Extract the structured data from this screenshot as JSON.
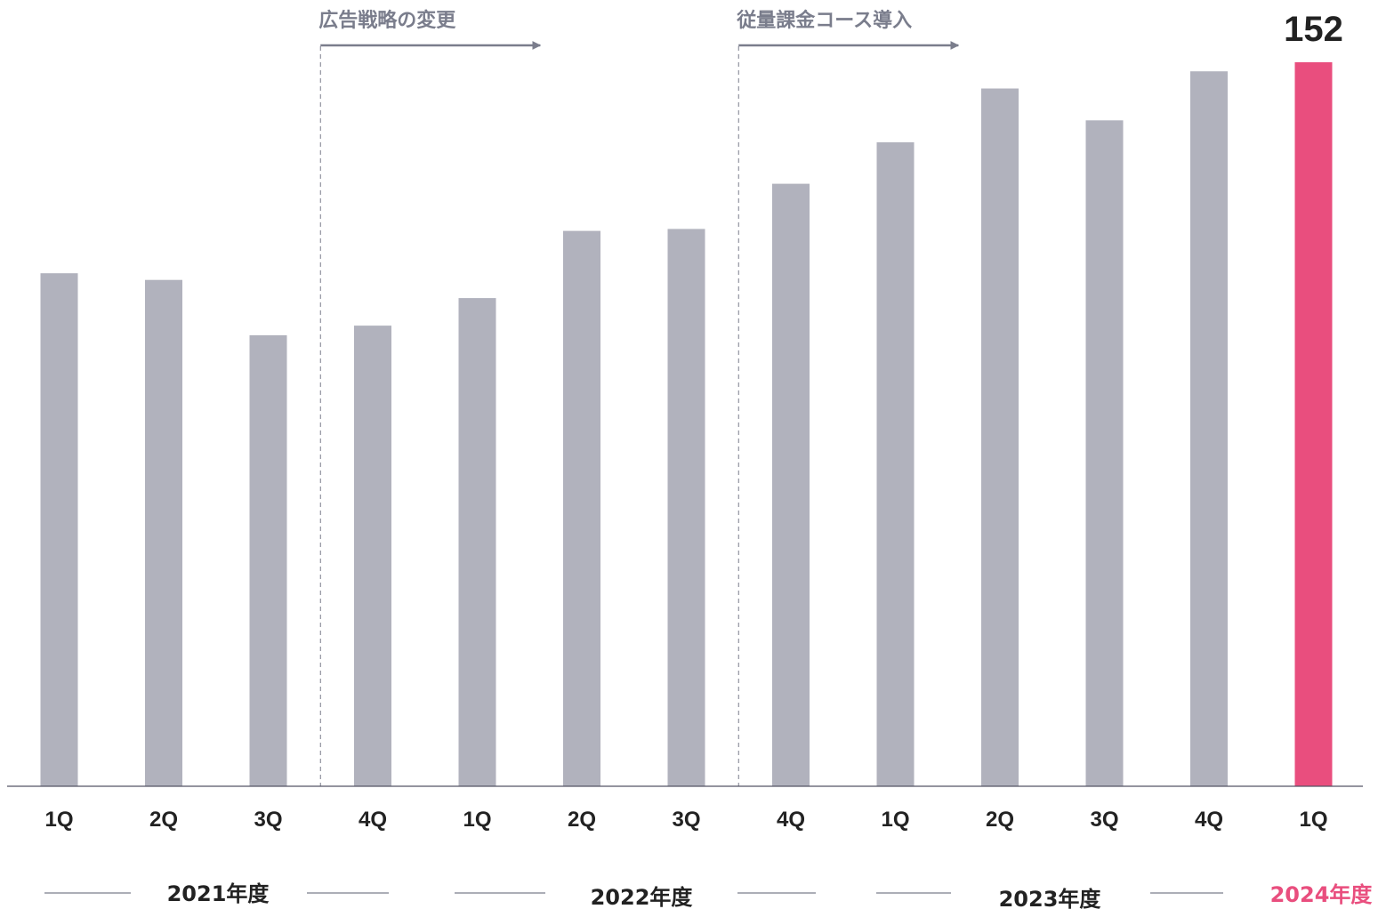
{
  "chart_data": {
    "type": "bar",
    "categories": [
      "1Q",
      "2Q",
      "3Q",
      "4Q",
      "1Q",
      "2Q",
      "3Q",
      "4Q",
      "1Q",
      "2Q",
      "3Q",
      "4Q",
      "1Q"
    ],
    "fiscal_years": [
      {
        "label": "2021年度",
        "highlight": false
      },
      {
        "label": "2022年度",
        "highlight": false
      },
      {
        "label": "2023年度",
        "highlight": false
      },
      {
        "label": "2024年度",
        "highlight": true
      }
    ],
    "values": [
      107.7,
      106.3,
      94.7,
      96.7,
      102.5,
      116.6,
      117.0,
      126.5,
      135.2,
      146.5,
      139.8,
      150.1,
      152
    ],
    "highlight_index": 12,
    "data_labels": [
      {
        "index": 12,
        "text": "152"
      }
    ],
    "annotations": [
      {
        "text": "広告戦略の変更",
        "start_after_index": 2
      },
      {
        "text": "従量課金コース導入",
        "start_after_index": 6
      }
    ],
    "ylim": [
      0,
      152
    ],
    "grid": false,
    "colors": {
      "bar": "#b1b2bd",
      "highlight": "#e94e7e",
      "annotation": "#7a7d8c",
      "axis": "#555566",
      "text": "#222222"
    }
  }
}
